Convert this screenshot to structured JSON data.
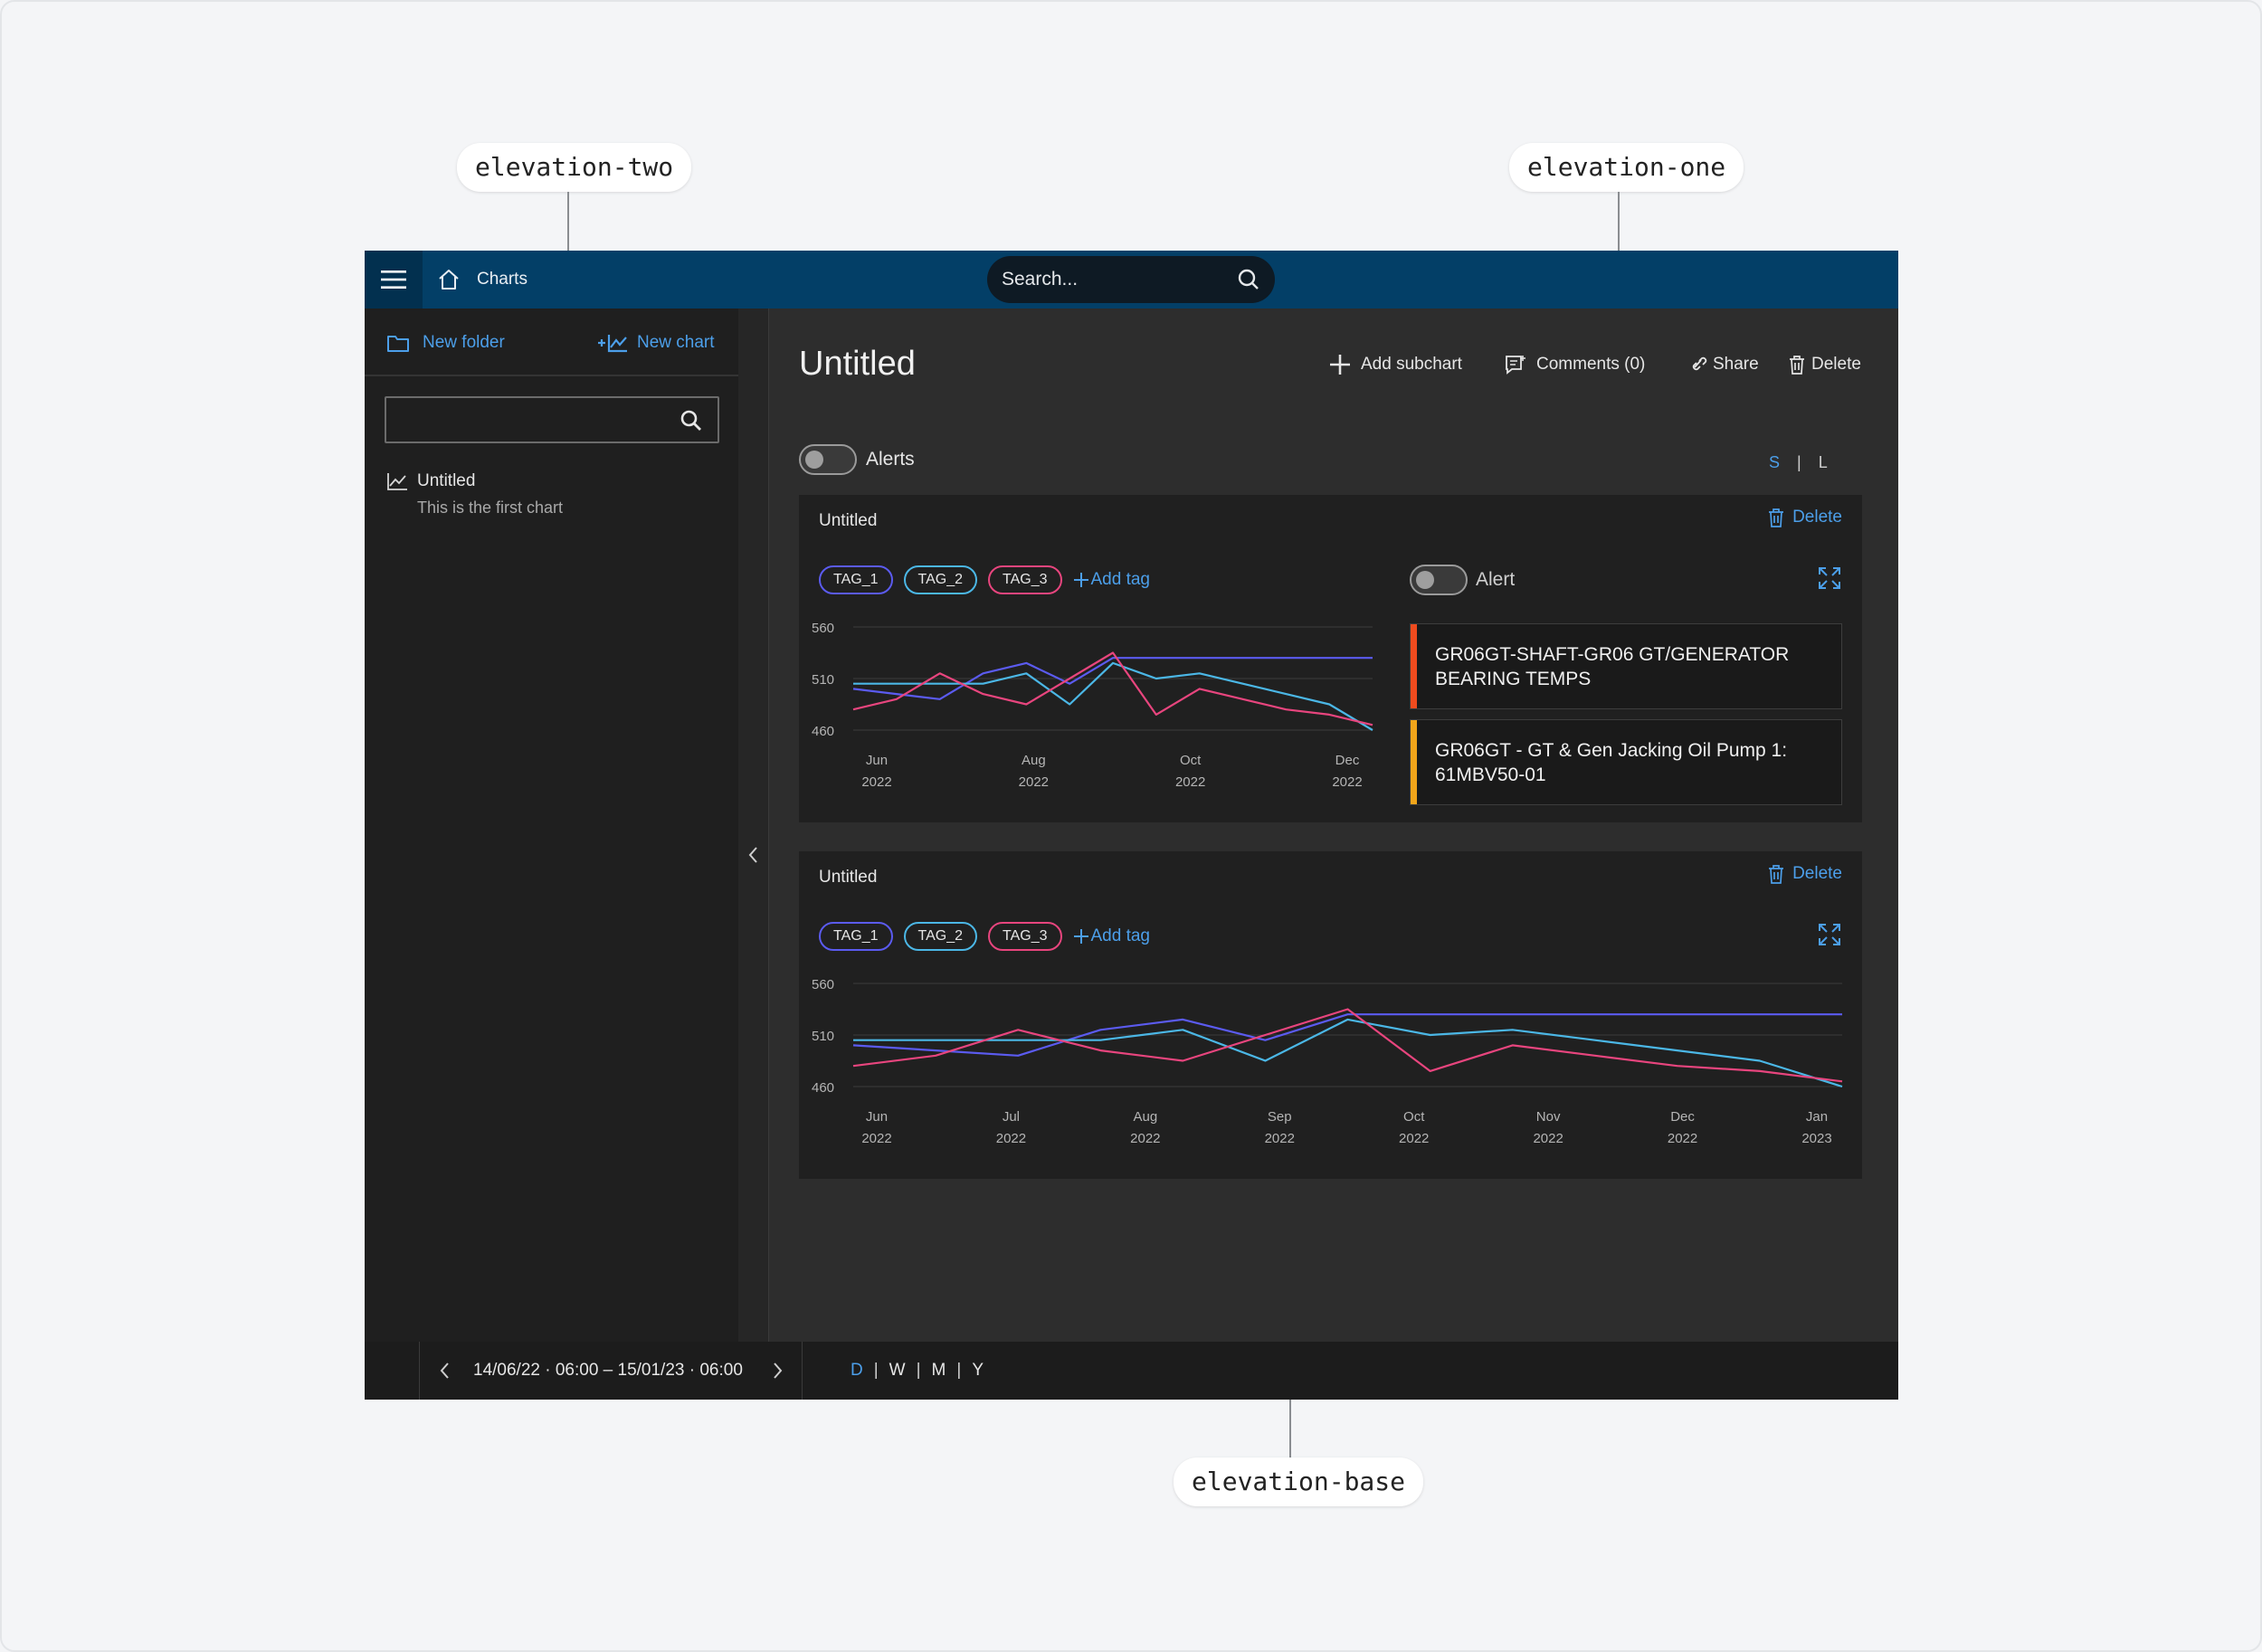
{
  "annotations": {
    "elevation_two": "elevation-two",
    "elevation_one": "elevation-one",
    "elevation_base": "elevation-base"
  },
  "topbar": {
    "breadcrumb": "Charts",
    "search_placeholder": "Search..."
  },
  "sidebar": {
    "new_folder": "New folder",
    "new_chart": "New chart",
    "search_value": "",
    "items": [
      {
        "title": "Untitled",
        "subtitle": "This is the first chart"
      }
    ]
  },
  "main": {
    "title": "Untitled",
    "toolbar": {
      "add_subchart": "Add subchart",
      "comments": "Comments (0)",
      "share": "Share",
      "delete": "Delete"
    },
    "alerts_label": "Alerts",
    "size_switch": {
      "small": "S",
      "separator": "|",
      "large": "L",
      "active": "S"
    }
  },
  "cards": [
    {
      "title": "Untitled",
      "delete_label": "Delete",
      "tags": [
        {
          "label": "TAG_1",
          "color": "#5b5bf0"
        },
        {
          "label": "TAG_2",
          "color": "#4bb7e6"
        },
        {
          "label": "TAG_3",
          "color": "#e8457e"
        }
      ],
      "add_tag": "Add tag",
      "alert_label": "Alert",
      "alerts": [
        {
          "text": "GR06GT-SHAFT-GR06 GT/GENERATOR BEARING TEMPS",
          "color": "#f04b1e"
        },
        {
          "text": "GR06GT - GT & Gen Jacking Oil Pump 1: 61MBV50-01",
          "color": "#f2a51a"
        }
      ]
    },
    {
      "title": "Untitled",
      "delete_label": "Delete",
      "tags": [
        {
          "label": "TAG_1",
          "color": "#5b5bf0"
        },
        {
          "label": "TAG_2",
          "color": "#4bb7e6"
        },
        {
          "label": "TAG_3",
          "color": "#e8457e"
        }
      ],
      "add_tag": "Add tag"
    }
  ],
  "chart_data": [
    {
      "type": "line",
      "yticks": [
        "560",
        "510",
        "460"
      ],
      "ylim": [
        460,
        560
      ],
      "xticks": [
        {
          "month": "Jun",
          "year": "2022"
        },
        {
          "month": "Aug",
          "year": "2022"
        },
        {
          "month": "Oct",
          "year": "2022"
        },
        {
          "month": "Dec",
          "year": "2022"
        }
      ],
      "x": [
        0,
        1,
        2,
        3,
        4,
        5,
        6,
        7,
        8,
        9,
        10,
        11,
        12
      ],
      "series": [
        {
          "color": "#5b5bf0",
          "values": [
            500,
            495,
            490,
            515,
            525,
            505,
            530,
            530,
            530,
            530,
            530,
            530,
            530
          ]
        },
        {
          "color": "#4bb7e6",
          "values": [
            505,
            505,
            505,
            505,
            515,
            485,
            525,
            510,
            515,
            505,
            495,
            485,
            460
          ]
        },
        {
          "color": "#e8457e",
          "values": [
            480,
            490,
            515,
            495,
            485,
            510,
            535,
            475,
            500,
            490,
            480,
            475,
            465
          ]
        }
      ]
    },
    {
      "type": "line",
      "yticks": [
        "560",
        "510",
        "460"
      ],
      "ylim": [
        460,
        560
      ],
      "xticks": [
        {
          "month": "Jun",
          "year": "2022"
        },
        {
          "month": "Jul",
          "year": "2022"
        },
        {
          "month": "Aug",
          "year": "2022"
        },
        {
          "month": "Sep",
          "year": "2022"
        },
        {
          "month": "Oct",
          "year": "2022"
        },
        {
          "month": "Nov",
          "year": "2022"
        },
        {
          "month": "Dec",
          "year": "2022"
        },
        {
          "month": "Jan",
          "year": "2023"
        }
      ],
      "x": [
        0,
        1,
        2,
        3,
        4,
        5,
        6,
        7,
        8,
        9,
        10,
        11,
        12
      ],
      "series": [
        {
          "color": "#5b5bf0",
          "values": [
            500,
            495,
            490,
            515,
            525,
            505,
            530,
            530,
            530,
            530,
            530,
            530,
            530
          ]
        },
        {
          "color": "#4bb7e6",
          "values": [
            505,
            505,
            505,
            505,
            515,
            485,
            525,
            510,
            515,
            505,
            495,
            485,
            460
          ]
        },
        {
          "color": "#e8457e",
          "values": [
            480,
            490,
            515,
            495,
            485,
            510,
            535,
            475,
            500,
            490,
            480,
            475,
            465
          ]
        }
      ]
    }
  ],
  "footer": {
    "range": "14/06/22 · 06:00 – 15/01/23 · 06:00",
    "periods": [
      "D",
      "W",
      "M",
      "Y"
    ],
    "active_period": "D"
  },
  "colors": {
    "accent": "#4c9fea",
    "topbar": "#033f67",
    "elevation_base": "#2d2d2d",
    "elevation_two": "#1f1f1f"
  }
}
